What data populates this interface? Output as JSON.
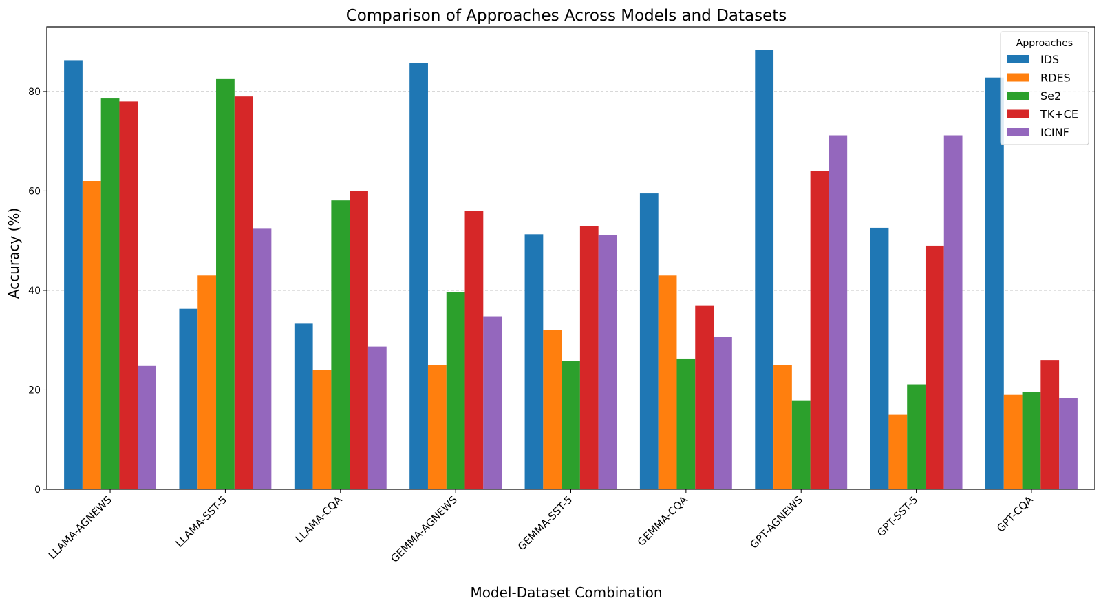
{
  "chart_data": {
    "type": "bar",
    "title": "Comparison of Approaches Across Models and Datasets",
    "xlabel": "Model-Dataset Combination",
    "ylabel": "Accuracy (%)",
    "ylim": [
      0,
      93
    ],
    "yticks": [
      0,
      20,
      40,
      60,
      80
    ],
    "grid": "y-dashed",
    "legend": {
      "title": "Approaches",
      "placement": "top-right"
    },
    "categories": [
      "LLAMA-AGNEWS",
      "LLAMA-SST-5",
      "LLAMA-CQA",
      "GEMMA-AGNEWS",
      "GEMMA-SST-5",
      "GEMMA-CQA",
      "GPT-AGNEWS",
      "GPT-SST-5",
      "GPT-CQA"
    ],
    "series": [
      {
        "name": "IDS",
        "color": "#1f77b4",
        "values": [
          86.3,
          36.3,
          33.3,
          85.8,
          51.3,
          59.5,
          88.3,
          52.6,
          82.8
        ]
      },
      {
        "name": "RDES",
        "color": "#ff7f0e",
        "values": [
          62.0,
          43.0,
          24.0,
          25.0,
          32.0,
          43.0,
          25.0,
          15.0,
          19.0
        ]
      },
      {
        "name": "Se2",
        "color": "#2ca02c",
        "values": [
          78.6,
          82.5,
          58.1,
          39.6,
          25.8,
          26.3,
          17.9,
          21.1,
          19.6
        ]
      },
      {
        "name": "TK+CE",
        "color": "#d62728",
        "values": [
          78.0,
          79.0,
          60.0,
          56.0,
          53.0,
          37.0,
          64.0,
          49.0,
          26.0
        ]
      },
      {
        "name": "ICINF",
        "color": "#9467bd",
        "values": [
          24.8,
          52.4,
          28.7,
          34.8,
          51.1,
          30.6,
          71.2,
          71.2,
          18.4
        ]
      }
    ]
  }
}
